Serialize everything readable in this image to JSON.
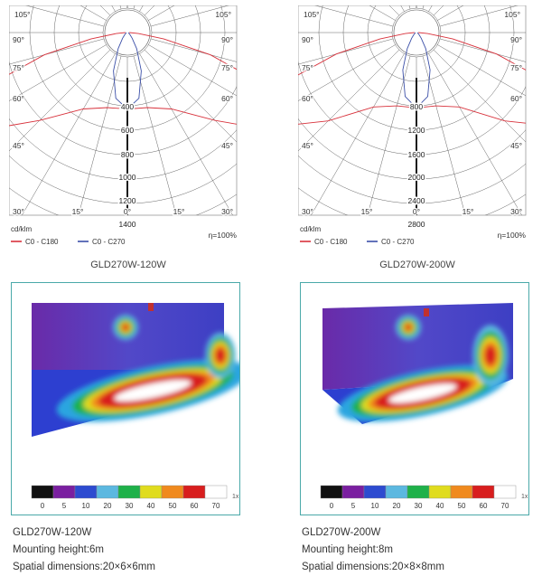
{
  "chart_data": [
    {
      "type": "polar",
      "unit_label": "cd/klm",
      "efficiency": "η=100%",
      "angle_labels": [
        "105°",
        "105°",
        "90°",
        "90°",
        "75°",
        "75°",
        "60°",
        "60°",
        "45°",
        "45°",
        "30°",
        "15°",
        "0°",
        "15°",
        "30°"
      ],
      "radial_ticks": [
        "400",
        "600",
        "800",
        "1000",
        "1200",
        "1400"
      ],
      "radial_values": [
        400,
        600,
        800,
        1000,
        1200,
        1400
      ],
      "series": [
        {
          "name": "C0 - C180",
          "color": "#d8323c",
          "points": [
            [
              0,
              420
            ],
            [
              15,
              430
            ],
            [
              30,
              520
            ],
            [
              45,
              820
            ],
            [
              55,
              1200
            ],
            [
              60,
              1300
            ],
            [
              65,
              1250
            ],
            [
              70,
              900
            ],
            [
              75,
              500
            ],
            [
              80,
              200
            ],
            [
              85,
              60
            ],
            [
              90,
              10
            ]
          ]
        },
        {
          "name": "C0 - C270",
          "color": "#3b4fa8",
          "points": [
            [
              0,
              420
            ],
            [
              10,
              360
            ],
            [
              20,
              220
            ],
            [
              30,
              100
            ],
            [
              40,
              40
            ],
            [
              50,
              20
            ],
            [
              90,
              5
            ]
          ]
        }
      ],
      "caption": "GLD270W-120W"
    },
    {
      "type": "polar",
      "unit_label": "cd/klm",
      "efficiency": "η=100%",
      "angle_labels": [
        "105°",
        "105°",
        "90°",
        "90°",
        "75°",
        "75°",
        "60°",
        "60°",
        "45°",
        "45°",
        "30°",
        "15°",
        "0°",
        "15°",
        "30°"
      ],
      "radial_ticks": [
        "800",
        "1200",
        "1600",
        "2000",
        "2400",
        "2800"
      ],
      "radial_values": [
        800,
        1200,
        1600,
        2000,
        2400,
        2800
      ],
      "series": [
        {
          "name": "C0 - C180",
          "color": "#d8323c",
          "points": [
            [
              0,
              820
            ],
            [
              15,
              830
            ],
            [
              30,
              1000
            ],
            [
              45,
              1650
            ],
            [
              55,
              2300
            ],
            [
              60,
              2500
            ],
            [
              65,
              2400
            ],
            [
              70,
              1750
            ],
            [
              75,
              950
            ],
            [
              80,
              400
            ],
            [
              85,
              120
            ],
            [
              90,
              20
            ]
          ]
        },
        {
          "name": "C0 - C270",
          "color": "#3b4fa8",
          "points": [
            [
              0,
              820
            ],
            [
              10,
              700
            ],
            [
              20,
              430
            ],
            [
              30,
              200
            ],
            [
              40,
              80
            ],
            [
              50,
              40
            ],
            [
              90,
              10
            ]
          ]
        }
      ],
      "caption": "GLD270W-200W"
    }
  ],
  "heatmaps": [
    {
      "legend_ticks": [
        "0",
        "5",
        "10",
        "20",
        "30",
        "40",
        "50",
        "60",
        "70"
      ],
      "legend_colors": [
        "#111111",
        "#7a1fa0",
        "#2d4bd0",
        "#5cb8e0",
        "#1fb14a",
        "#e0dc1e",
        "#f08a1e",
        "#d81e1e",
        "#ffffff"
      ],
      "scale_label": "1x",
      "model": "GLD270W-120W",
      "mounting": "Mounting height:6m",
      "dimensions": "Spatial dimensions:20×6×6mm"
    },
    {
      "legend_ticks": [
        "0",
        "5",
        "10",
        "20",
        "30",
        "40",
        "50",
        "60",
        "70"
      ],
      "legend_colors": [
        "#111111",
        "#7a1fa0",
        "#2d4bd0",
        "#5cb8e0",
        "#1fb14a",
        "#e0dc1e",
        "#f08a1e",
        "#d81e1e",
        "#ffffff"
      ],
      "scale_label": "1x",
      "model": "GLD270W-200W",
      "mounting": "Mounting height:8m",
      "dimensions": "Spatial dimensions:20×8×8mm"
    }
  ]
}
